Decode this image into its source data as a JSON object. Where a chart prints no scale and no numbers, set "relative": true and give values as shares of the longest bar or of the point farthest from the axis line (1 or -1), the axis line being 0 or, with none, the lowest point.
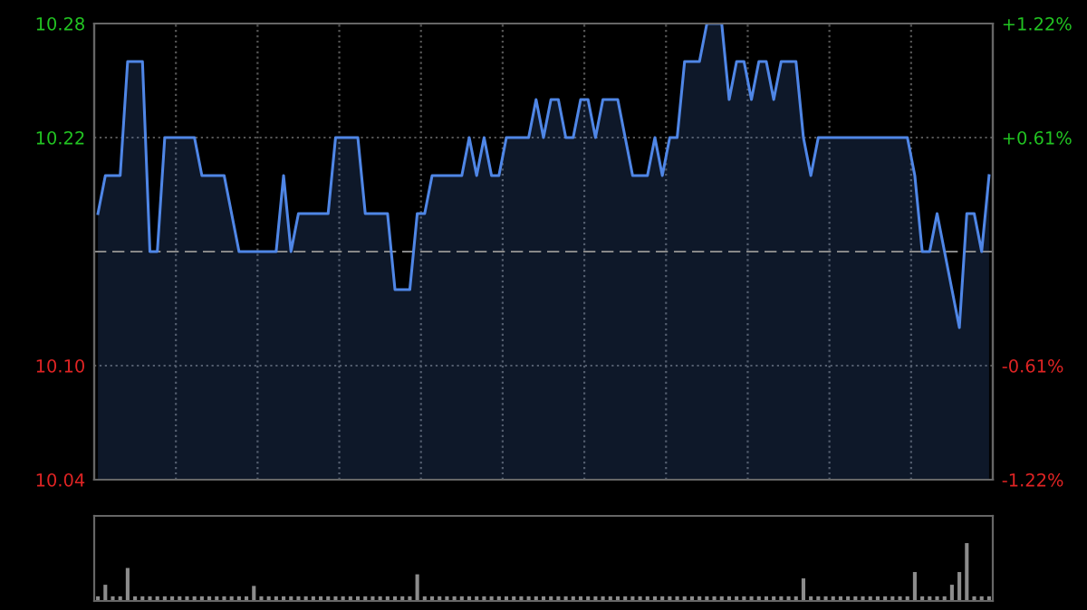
{
  "chart_data": [
    {
      "type": "area",
      "categories": [
        null,
        null,
        null,
        null,
        null,
        null,
        null,
        null,
        null,
        null,
        null,
        null,
        null,
        null,
        null,
        null,
        null,
        null,
        null,
        null,
        null,
        null,
        null,
        null,
        null,
        null,
        null,
        null,
        null,
        null,
        null,
        null,
        null,
        null,
        null,
        null,
        null,
        null,
        null,
        null,
        null,
        null,
        null,
        null,
        null,
        null,
        null,
        null,
        null,
        null,
        null,
        null,
        null,
        null,
        null,
        null,
        null,
        null,
        null,
        null,
        null,
        null,
        null,
        null,
        null,
        null,
        null,
        null,
        null,
        null,
        null,
        null,
        null,
        null,
        null,
        null,
        null,
        null,
        null,
        null,
        null,
        null,
        null,
        null,
        null,
        null,
        null,
        null,
        null,
        null,
        null,
        null,
        null,
        null,
        null,
        null,
        null,
        null,
        null,
        null,
        null,
        null,
        null,
        null,
        null,
        null,
        null,
        null,
        null,
        null,
        null,
        null,
        null,
        null,
        null,
        null,
        null,
        null,
        null,
        null,
        null
      ],
      "series": [
        {
          "color": "#4f86e6",
          "values": [
            10.18,
            10.2,
            10.2,
            10.2,
            10.26,
            10.26,
            10.26,
            10.16,
            10.16,
            10.22,
            10.22,
            10.22,
            10.22,
            10.22,
            10.2,
            10.2,
            10.2,
            10.2,
            10.18,
            10.16,
            10.16,
            10.16,
            10.16,
            10.16,
            10.16,
            10.2,
            10.16,
            10.18,
            10.18,
            10.18,
            10.18,
            10.18,
            10.22,
            10.22,
            10.22,
            10.22,
            10.18,
            10.18,
            10.18,
            10.18,
            10.14,
            10.14,
            10.14,
            10.18,
            10.18,
            10.2,
            10.2,
            10.2,
            10.2,
            10.2,
            10.22,
            10.2,
            10.22,
            10.2,
            10.2,
            10.22,
            10.22,
            10.22,
            10.22,
            10.24,
            10.22,
            10.24,
            10.24,
            10.22,
            10.22,
            10.24,
            10.24,
            10.22,
            10.24,
            10.24,
            10.24,
            10.22,
            10.2,
            10.2,
            10.2,
            10.22,
            10.2,
            10.22,
            10.22,
            10.26,
            10.26,
            10.26,
            10.28,
            10.28,
            10.28,
            10.24,
            10.26,
            10.26,
            10.24,
            10.26,
            10.26,
            10.24,
            10.26,
            10.26,
            10.26,
            10.22,
            10.2,
            10.22,
            10.22,
            10.22,
            10.22,
            10.22,
            10.22,
            10.22,
            10.22,
            10.22,
            10.22,
            10.22,
            10.22,
            10.22,
            10.2,
            10.16,
            10.16,
            10.18,
            10.16,
            10.14,
            10.12,
            10.18,
            10.18,
            10.16,
            10.2
          ]
        }
      ],
      "ylim": [
        10.04,
        10.28
      ],
      "yticks": [
        10.04,
        {
          "value": 10.1,
          "label": "10.10"
        },
        {
          "value": 10.16,
          "label": null
        },
        10.22,
        10.28
      ],
      "y2lim": [
        -1.22,
        1.22
      ],
      "y2ticks": [
        {
          "value": -1.22,
          "label": "-1.22%"
        },
        {
          "value": -0.61,
          "label": "-0.61%"
        },
        {
          "value": 0.61,
          "label": "+0.61%"
        },
        {
          "value": 1.22,
          "label": "+1.22%"
        }
      ],
      "ref_lines": [
        {
          "axis": "y",
          "value": 10.16,
          "line_style": "dashed"
        }
      ],
      "grid": true,
      "tick_labels": "y"
    },
    {
      "type": "bar",
      "relative": true,
      "categories": [
        null,
        null,
        null,
        null,
        null,
        null,
        null,
        null,
        null,
        null,
        null,
        null,
        null,
        null,
        null,
        null,
        null,
        null,
        null,
        null,
        null,
        null,
        null,
        null,
        null,
        null,
        null,
        null,
        null,
        null,
        null,
        null,
        null,
        null,
        null,
        null,
        null,
        null,
        null,
        null,
        null,
        null,
        null,
        null,
        null,
        null,
        null,
        null,
        null,
        null,
        null,
        null,
        null,
        null,
        null,
        null,
        null,
        null,
        null,
        null,
        null,
        null,
        null,
        null,
        null,
        null,
        null,
        null,
        null,
        null,
        null,
        null,
        null,
        null,
        null,
        null,
        null,
        null,
        null,
        null,
        null,
        null,
        null,
        null,
        null,
        null,
        null,
        null,
        null,
        null,
        null,
        null,
        null,
        null,
        null,
        null,
        null,
        null,
        null,
        null,
        null,
        null,
        null,
        null,
        null,
        null,
        null,
        null,
        null,
        null,
        null,
        null,
        null,
        null,
        null,
        null,
        null,
        null,
        null,
        null,
        null
      ],
      "color": "#8c8c8c",
      "values": [
        0.08,
        0.28,
        0.08,
        0.08,
        0.57,
        0.08,
        0.08,
        0.08,
        0.08,
        0.08,
        0.08,
        0.08,
        0.08,
        0.08,
        0.08,
        0.08,
        0.08,
        0.08,
        0.08,
        0.08,
        0.08,
        0.26,
        0.08,
        0.08,
        0.08,
        0.08,
        0.08,
        0.08,
        0.08,
        0.08,
        0.08,
        0.08,
        0.08,
        0.08,
        0.08,
        0.08,
        0.08,
        0.08,
        0.08,
        0.08,
        0.08,
        0.08,
        0.08,
        0.46,
        0.08,
        0.08,
        0.08,
        0.08,
        0.08,
        0.08,
        0.08,
        0.08,
        0.08,
        0.08,
        0.08,
        0.08,
        0.08,
        0.08,
        0.08,
        0.08,
        0.08,
        0.08,
        0.08,
        0.08,
        0.08,
        0.08,
        0.08,
        0.08,
        0.08,
        0.08,
        0.08,
        0.08,
        0.08,
        0.08,
        0.08,
        0.08,
        0.08,
        0.08,
        0.08,
        0.08,
        0.08,
        0.08,
        0.08,
        0.08,
        0.08,
        0.08,
        0.08,
        0.08,
        0.08,
        0.08,
        0.08,
        0.08,
        0.08,
        0.08,
        0.08,
        0.39,
        0.08,
        0.08,
        0.08,
        0.08,
        0.08,
        0.08,
        0.08,
        0.08,
        0.08,
        0.08,
        0.08,
        0.08,
        0.08,
        0.08,
        0.5,
        0.08,
        0.08,
        0.08,
        0.08,
        0.28,
        0.5,
        1.0,
        0.08,
        0.08,
        0.08
      ],
      "tick_labels": false
    }
  ]
}
